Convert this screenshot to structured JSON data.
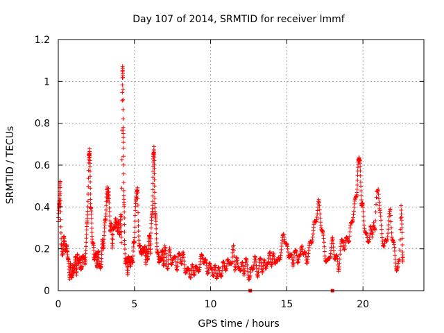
{
  "chart_data": {
    "type": "scatter",
    "title": "Day 107 of 2014, SRMTID for receiver lmmf",
    "xlabel": "GPS time / hours",
    "ylabel": "SRMTID / TECUs",
    "xlim": [
      0,
      24
    ],
    "ylim": [
      0,
      1.2
    ],
    "x_ticks": [
      0,
      5,
      10,
      15,
      20
    ],
    "x_tick_labels": [
      "0",
      "5",
      "10",
      "15",
      "20"
    ],
    "y_ticks": [
      0,
      0.2,
      0.4,
      0.6,
      0.8,
      1.0,
      1.2
    ],
    "y_tick_labels": [
      "0",
      "0.2",
      "0.4",
      "0.6",
      "0.8",
      "1",
      "1.2"
    ],
    "grid": true,
    "marker": "+",
    "color": "#ff0000",
    "x_data_extent": [
      0,
      22.6
    ],
    "series": [
      {
        "name": "SRMTID",
        "points": [
          [
            0.0,
            0.33
          ],
          [
            0.05,
            0.38
          ],
          [
            0.08,
            0.45
          ],
          [
            0.1,
            0.49
          ],
          [
            0.12,
            0.5
          ],
          [
            0.15,
            0.4
          ],
          [
            0.2,
            0.22
          ],
          [
            0.25,
            0.15
          ],
          [
            0.3,
            0.2
          ],
          [
            0.35,
            0.25
          ],
          [
            0.4,
            0.22
          ],
          [
            0.45,
            0.24
          ],
          [
            0.5,
            0.18
          ],
          [
            0.55,
            0.2
          ],
          [
            0.6,
            0.21
          ],
          [
            0.65,
            0.14
          ],
          [
            0.7,
            0.1
          ],
          [
            0.75,
            0.08
          ],
          [
            0.8,
            0.12
          ],
          [
            0.85,
            0.06
          ],
          [
            0.9,
            0.09
          ],
          [
            0.95,
            0.11
          ],
          [
            1.0,
            0.07
          ],
          [
            1.05,
            0.13
          ],
          [
            1.1,
            0.12
          ],
          [
            1.15,
            0.15
          ],
          [
            1.2,
            0.1
          ],
          [
            1.25,
            0.16
          ],
          [
            1.3,
            0.12
          ],
          [
            1.35,
            0.17
          ],
          [
            1.4,
            0.14
          ],
          [
            1.45,
            0.11
          ],
          [
            1.5,
            0.13
          ],
          [
            1.55,
            0.1
          ],
          [
            1.6,
            0.16
          ],
          [
            1.65,
            0.19
          ],
          [
            1.7,
            0.14
          ],
          [
            1.75,
            0.12
          ],
          [
            1.8,
            0.2
          ],
          [
            1.85,
            0.25
          ],
          [
            1.9,
            0.33
          ],
          [
            1.95,
            0.45
          ],
          [
            2.0,
            0.59
          ],
          [
            2.02,
            0.65
          ],
          [
            2.05,
            0.7
          ],
          [
            2.08,
            0.6
          ],
          [
            2.1,
            0.52
          ],
          [
            2.12,
            0.42
          ],
          [
            2.15,
            0.37
          ],
          [
            2.2,
            0.3
          ],
          [
            2.25,
            0.25
          ],
          [
            2.3,
            0.2
          ],
          [
            2.35,
            0.16
          ],
          [
            2.4,
            0.18
          ],
          [
            2.45,
            0.15
          ],
          [
            2.5,
            0.17
          ],
          [
            2.55,
            0.13
          ],
          [
            2.6,
            0.16
          ],
          [
            2.65,
            0.18
          ],
          [
            2.7,
            0.14
          ],
          [
            2.75,
            0.08
          ],
          [
            2.8,
            0.12
          ],
          [
            2.85,
            0.19
          ],
          [
            2.9,
            0.22
          ],
          [
            2.95,
            0.21
          ],
          [
            3.0,
            0.26
          ],
          [
            3.05,
            0.3
          ],
          [
            3.1,
            0.35
          ],
          [
            3.15,
            0.42
          ],
          [
            3.2,
            0.47
          ],
          [
            3.25,
            0.44
          ],
          [
            3.3,
            0.5
          ],
          [
            3.35,
            0.37
          ],
          [
            3.4,
            0.3
          ],
          [
            3.45,
            0.33
          ],
          [
            3.5,
            0.28
          ],
          [
            3.55,
            0.22
          ],
          [
            3.6,
            0.3
          ],
          [
            3.65,
            0.27
          ],
          [
            3.7,
            0.32
          ],
          [
            3.75,
            0.35
          ],
          [
            3.8,
            0.3
          ],
          [
            3.85,
            0.33
          ],
          [
            3.9,
            0.29
          ],
          [
            3.95,
            0.31
          ],
          [
            4.0,
            0.3
          ],
          [
            4.05,
            0.28
          ],
          [
            4.1,
            0.34
          ],
          [
            4.15,
            0.25
          ],
          [
            4.2,
            0.91
          ],
          [
            4.22,
            1.05
          ],
          [
            4.24,
            1.04
          ],
          [
            4.26,
            0.78
          ],
          [
            4.28,
            0.66
          ],
          [
            4.3,
            0.5
          ],
          [
            4.33,
            0.4
          ],
          [
            4.35,
            0.22
          ],
          [
            4.4,
            0.16
          ],
          [
            4.45,
            0.14
          ],
          [
            4.5,
            0.12
          ],
          [
            4.55,
            0.1
          ],
          [
            4.6,
            0.15
          ],
          [
            4.65,
            0.13
          ],
          [
            4.7,
            0.16
          ],
          [
            4.75,
            0.11
          ],
          [
            4.8,
            0.14
          ],
          [
            4.85,
            0.17
          ],
          [
            4.9,
            0.13
          ],
          [
            4.95,
            0.22
          ],
          [
            5.0,
            0.26
          ],
          [
            5.05,
            0.35
          ],
          [
            5.1,
            0.42
          ],
          [
            5.15,
            0.5
          ],
          [
            5.2,
            0.48
          ],
          [
            5.25,
            0.32
          ],
          [
            5.3,
            0.25
          ],
          [
            5.35,
            0.2
          ],
          [
            5.4,
            0.18
          ],
          [
            5.45,
            0.21
          ],
          [
            5.5,
            0.16
          ],
          [
            5.55,
            0.19
          ],
          [
            5.6,
            0.22
          ],
          [
            5.65,
            0.17
          ],
          [
            5.7,
            0.2
          ],
          [
            5.75,
            0.15
          ],
          [
            5.8,
            0.18
          ],
          [
            5.85,
            0.14
          ],
          [
            5.9,
            0.2
          ],
          [
            5.95,
            0.23
          ],
          [
            6.0,
            0.25
          ],
          [
            6.05,
            0.2
          ],
          [
            6.1,
            0.28
          ],
          [
            6.15,
            0.36
          ],
          [
            6.2,
            0.45
          ],
          [
            6.22,
            0.55
          ],
          [
            6.25,
            0.65
          ],
          [
            6.28,
            0.71
          ],
          [
            6.3,
            0.6
          ],
          [
            6.32,
            0.5
          ],
          [
            6.35,
            0.4
          ],
          [
            6.4,
            0.32
          ],
          [
            6.45,
            0.25
          ],
          [
            6.5,
            0.2
          ],
          [
            6.55,
            0.16
          ],
          [
            6.6,
            0.14
          ],
          [
            6.65,
            0.18
          ],
          [
            6.7,
            0.12
          ],
          [
            6.75,
            0.15
          ],
          [
            6.8,
            0.2
          ],
          [
            6.85,
            0.17
          ],
          [
            6.9,
            0.13
          ],
          [
            6.95,
            0.16
          ],
          [
            7.0,
            0.19
          ],
          [
            7.1,
            0.15
          ],
          [
            7.2,
            0.12
          ],
          [
            7.3,
            0.18
          ],
          [
            7.4,
            0.14
          ],
          [
            7.5,
            0.16
          ],
          [
            7.6,
            0.13
          ],
          [
            7.7,
            0.17
          ],
          [
            7.8,
            0.11
          ],
          [
            7.9,
            0.15
          ],
          [
            8.0,
            0.18
          ],
          [
            8.1,
            0.14
          ],
          [
            8.2,
            0.16
          ],
          [
            8.3,
            0.12
          ],
          [
            8.4,
            0.1
          ],
          [
            8.5,
            0.08
          ],
          [
            8.6,
            0.11
          ],
          [
            8.7,
            0.07
          ],
          [
            8.8,
            0.1
          ],
          [
            8.9,
            0.09
          ],
          [
            9.0,
            0.12
          ],
          [
            9.1,
            0.08
          ],
          [
            9.2,
            0.11
          ],
          [
            9.3,
            0.13
          ],
          [
            9.4,
            0.15
          ],
          [
            9.5,
            0.17
          ],
          [
            9.6,
            0.14
          ],
          [
            9.7,
            0.12
          ],
          [
            9.8,
            0.1
          ],
          [
            9.9,
            0.13
          ],
          [
            10.0,
            0.09
          ],
          [
            10.1,
            0.12
          ],
          [
            10.2,
            0.07
          ],
          [
            10.3,
            0.1
          ],
          [
            10.4,
            0.08
          ],
          [
            10.5,
            0.11
          ],
          [
            10.6,
            0.06
          ],
          [
            10.7,
            0.09
          ],
          [
            10.8,
            0.13
          ],
          [
            10.9,
            0.1
          ],
          [
            11.0,
            0.12
          ],
          [
            11.1,
            0.14
          ],
          [
            11.2,
            0.11
          ],
          [
            11.3,
            0.16
          ],
          [
            11.4,
            0.13
          ],
          [
            11.5,
            0.2
          ],
          [
            11.6,
            0.12
          ],
          [
            11.7,
            0.15
          ],
          [
            11.8,
            0.1
          ],
          [
            11.9,
            0.13
          ],
          [
            12.0,
            0.09
          ],
          [
            12.1,
            0.12
          ],
          [
            12.2,
            0.1
          ],
          [
            12.3,
            0.14
          ],
          [
            12.4,
            0.11
          ],
          [
            12.5,
            0.08
          ],
          [
            12.6,
            0.06
          ],
          [
            12.7,
            0.1
          ],
          [
            12.8,
            0.13
          ],
          [
            12.9,
            0.15
          ],
          [
            13.0,
            0.11
          ],
          [
            13.1,
            0.09
          ],
          [
            13.2,
            0.12
          ],
          [
            13.3,
            0.14
          ],
          [
            13.4,
            0.11
          ],
          [
            13.5,
            0.13
          ],
          [
            13.6,
            0.1
          ],
          [
            13.7,
            0.15
          ],
          [
            13.8,
            0.12
          ],
          [
            13.9,
            0.18
          ],
          [
            14.0,
            0.14
          ],
          [
            14.1,
            0.16
          ],
          [
            14.2,
            0.13
          ],
          [
            14.3,
            0.17
          ],
          [
            14.4,
            0.12
          ],
          [
            14.5,
            0.15
          ],
          [
            14.6,
            0.19
          ],
          [
            14.7,
            0.22
          ],
          [
            14.8,
            0.27
          ],
          [
            14.9,
            0.25
          ],
          [
            15.0,
            0.2
          ],
          [
            15.1,
            0.17
          ],
          [
            15.2,
            0.19
          ],
          [
            15.3,
            0.15
          ],
          [
            15.4,
            0.12
          ],
          [
            15.5,
            0.2
          ],
          [
            15.6,
            0.17
          ],
          [
            15.7,
            0.14
          ],
          [
            15.8,
            0.18
          ],
          [
            15.9,
            0.15
          ],
          [
            16.0,
            0.22
          ],
          [
            16.1,
            0.19
          ],
          [
            16.2,
            0.16
          ],
          [
            16.3,
            0.14
          ],
          [
            16.4,
            0.18
          ],
          [
            16.5,
            0.2
          ],
          [
            16.6,
            0.24
          ],
          [
            16.7,
            0.27
          ],
          [
            16.8,
            0.3
          ],
          [
            16.9,
            0.34
          ],
          [
            17.0,
            0.38
          ],
          [
            17.1,
            0.41
          ],
          [
            17.2,
            0.36
          ],
          [
            17.3,
            0.3
          ],
          [
            17.4,
            0.24
          ],
          [
            17.5,
            0.18
          ],
          [
            17.6,
            0.15
          ],
          [
            17.7,
            0.12
          ],
          [
            17.8,
            0.17
          ],
          [
            17.9,
            0.2
          ],
          [
            18.0,
            0.23
          ],
          [
            18.1,
            0.19
          ],
          [
            18.2,
            0.16
          ],
          [
            18.3,
            0.14
          ],
          [
            18.4,
            0.11
          ],
          [
            18.5,
            0.18
          ],
          [
            18.6,
            0.22
          ],
          [
            18.7,
            0.25
          ],
          [
            18.8,
            0.2
          ],
          [
            18.9,
            0.23
          ],
          [
            19.0,
            0.27
          ],
          [
            19.1,
            0.24
          ],
          [
            19.2,
            0.3
          ],
          [
            19.3,
            0.35
          ],
          [
            19.4,
            0.38
          ],
          [
            19.5,
            0.42
          ],
          [
            19.6,
            0.48
          ],
          [
            19.65,
            0.55
          ],
          [
            19.7,
            0.6
          ],
          [
            19.75,
            0.66
          ],
          [
            19.8,
            0.62
          ],
          [
            19.85,
            0.5
          ],
          [
            19.9,
            0.44
          ],
          [
            19.95,
            0.41
          ],
          [
            20.0,
            0.38
          ],
          [
            20.1,
            0.32
          ],
          [
            20.2,
            0.27
          ],
          [
            20.3,
            0.22
          ],
          [
            20.4,
            0.26
          ],
          [
            20.5,
            0.3
          ],
          [
            20.6,
            0.24
          ],
          [
            20.7,
            0.35
          ],
          [
            20.8,
            0.28
          ],
          [
            20.9,
            0.46
          ],
          [
            21.0,
            0.51
          ],
          [
            21.1,
            0.38
          ],
          [
            21.2,
            0.3
          ],
          [
            21.3,
            0.25
          ],
          [
            21.4,
            0.2
          ],
          [
            21.5,
            0.23
          ],
          [
            21.6,
            0.27
          ],
          [
            21.7,
            0.32
          ],
          [
            21.8,
            0.38
          ],
          [
            21.9,
            0.28
          ],
          [
            22.0,
            0.22
          ],
          [
            22.1,
            0.16
          ],
          [
            22.2,
            0.12
          ],
          [
            22.3,
            0.1
          ],
          [
            22.4,
            0.14
          ],
          [
            22.5,
            0.43
          ],
          [
            22.55,
            0.3
          ],
          [
            22.6,
            0.18
          ],
          [
            22.62,
            0.16
          ]
        ]
      }
    ],
    "markers_on_axis": [
      [
        12.6,
        0
      ],
      [
        18.0,
        0
      ]
    ]
  }
}
